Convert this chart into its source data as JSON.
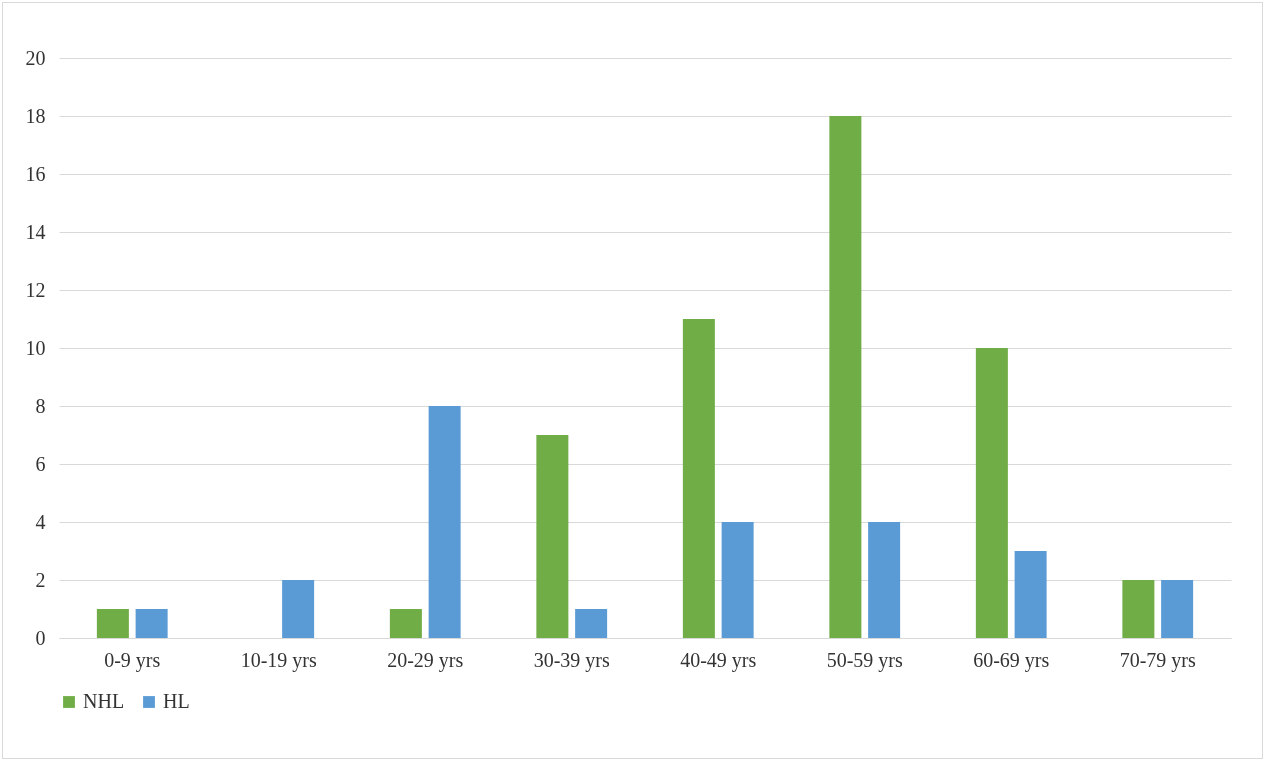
{
  "chart_data": {
    "type": "bar",
    "categories": [
      "0-9 yrs",
      "10-19 yrs",
      "20-29 yrs",
      "30-39 yrs",
      "40-49 yrs",
      "50-59 yrs",
      "60-69 yrs",
      "70-79 yrs"
    ],
    "series": [
      {
        "name": "NHL",
        "color": "#70ad47",
        "values": [
          1,
          0,
          1,
          7,
          11,
          18,
          10,
          2
        ]
      },
      {
        "name": "HL",
        "color": "#5b9bd5",
        "values": [
          1,
          2,
          8,
          1,
          4,
          4,
          3,
          2
        ]
      }
    ],
    "ylim": [
      0,
      20
    ],
    "yticks": [
      0,
      2,
      4,
      6,
      8,
      10,
      12,
      14,
      16,
      18,
      20
    ],
    "grid": "y",
    "legend": "bottom"
  }
}
